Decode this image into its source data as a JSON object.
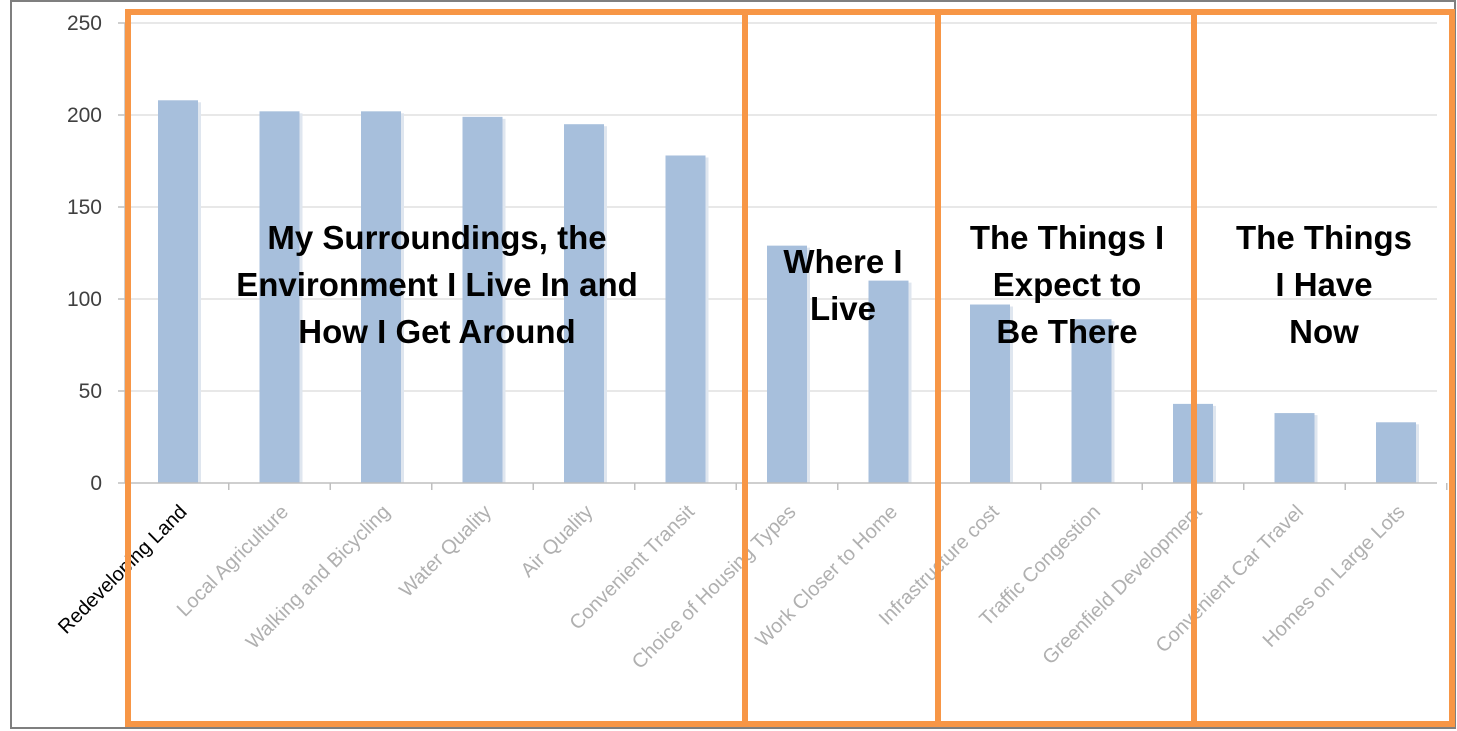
{
  "colors": {
    "bar": "#a7bfdc",
    "group_box": "#f79646",
    "grid": "#d9d9d9",
    "axis": "#bfbfbf",
    "frame": "#7f7f7f"
  },
  "chart_data": {
    "type": "bar",
    "title": "",
    "xlabel": "",
    "ylabel": "",
    "ylim": [
      0,
      250
    ],
    "yticks": [
      0,
      50,
      100,
      150,
      200,
      250
    ],
    "grid": true,
    "categories": [
      "Redeveloping Land",
      "Local Agriculture",
      "Walking and Bicycling",
      "Water Quality",
      "Air Quality",
      "Convenient Transit",
      "Choice of Housing Types",
      "Work Closer to Home",
      "Infrastructure cost",
      "Traffic Congestion",
      "Greenfield Development",
      "Convenient Car Travel",
      "Homes on Large Lots"
    ],
    "values": [
      208,
      202,
      202,
      199,
      195,
      178,
      129,
      110,
      97,
      89,
      43,
      38,
      33
    ],
    "groups": [
      {
        "label_lines": [
          "My Surroundings, the",
          "Environment I Live In and",
          "How I Get Around"
        ],
        "from": 0,
        "to": 5
      },
      {
        "label_lines": [
          "Where I",
          "Live"
        ],
        "from": 6,
        "to": 7
      },
      {
        "label_lines": [
          "The Things I",
          "Expect to",
          "Be There"
        ],
        "from": 8,
        "to": 10
      },
      {
        "label_lines": [
          "The Things",
          "I Have",
          "Now"
        ],
        "from": 11,
        "to": 12
      }
    ]
  }
}
